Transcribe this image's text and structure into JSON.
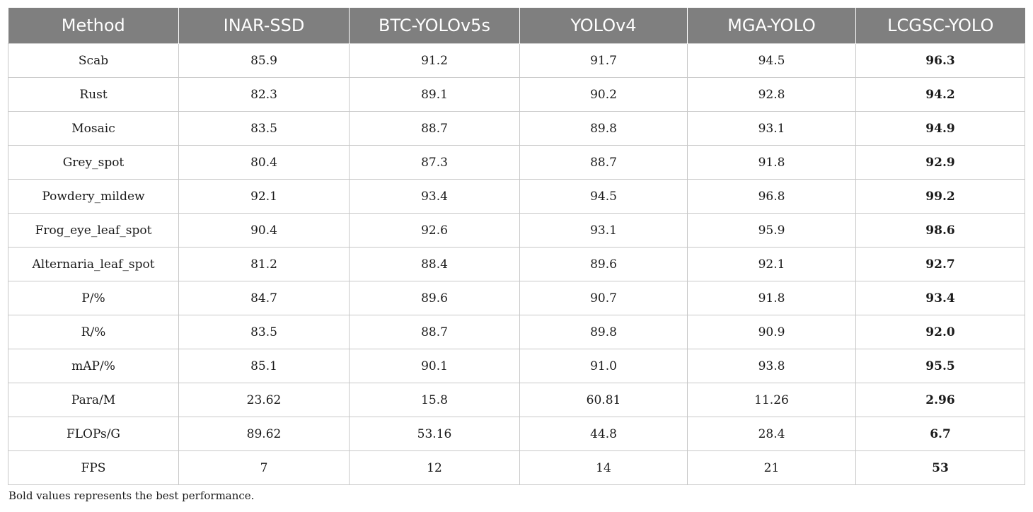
{
  "table": {
    "headers": [
      "Method",
      "INAR-SSD",
      "BTC-YOLOv5s",
      "YOLOv4",
      "MGA-YOLO",
      "LCGSC-YOLO"
    ],
    "rows": [
      [
        "Scab",
        "85.9",
        "91.2",
        "91.7",
        "94.5",
        "96.3"
      ],
      [
        "Rust",
        "82.3",
        "89.1",
        "90.2",
        "92.8",
        "94.2"
      ],
      [
        "Mosaic",
        "83.5",
        "88.7",
        "89.8",
        "93.1",
        "94.9"
      ],
      [
        "Grey_spot",
        "80.4",
        "87.3",
        "88.7",
        "91.8",
        "92.9"
      ],
      [
        "Powdery_mildew",
        "92.1",
        "93.4",
        "94.5",
        "96.8",
        "99.2"
      ],
      [
        "Frog_eye_leaf_spot",
        "90.4",
        "92.6",
        "93.1",
        "95.9",
        "98.6"
      ],
      [
        "Alternaria_leaf_spot",
        "81.2",
        "88.4",
        "89.6",
        "92.1",
        "92.7"
      ],
      [
        "P/%",
        "84.7",
        "89.6",
        "90.7",
        "91.8",
        "93.4"
      ],
      [
        "R/%",
        "83.5",
        "88.7",
        "89.8",
        "90.9",
        "92.0"
      ],
      [
        "mAP/%",
        "85.1",
        "90.1",
        "91.0",
        "93.8",
        "95.5"
      ],
      [
        "Para/M",
        "23.62",
        "15.8",
        "60.81",
        "11.26",
        "2.96"
      ],
      [
        "FLOPs/G",
        "89.62",
        "53.16",
        "44.8",
        "28.4",
        "6.7"
      ],
      [
        "FPS",
        "7",
        "12",
        "14",
        "21",
        "53"
      ]
    ],
    "best_column": 5
  },
  "footnote": "Bold values represents the best performance.",
  "colors": {
    "header_bg": "#7f7f7f",
    "header_text": "#ffffff",
    "grid": "#c8c8c8"
  }
}
